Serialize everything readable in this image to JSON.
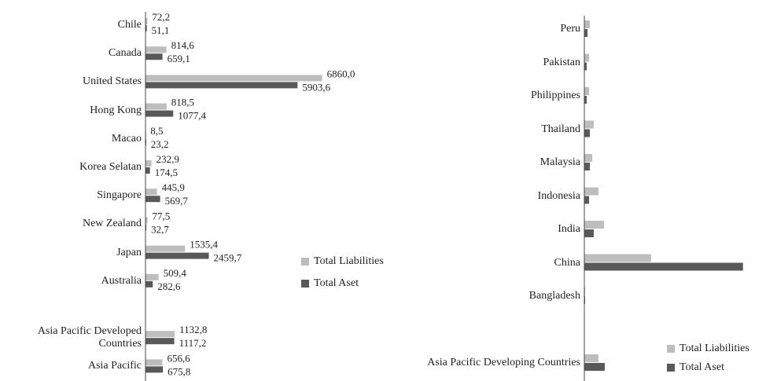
{
  "chart_data": [
    {
      "type": "bar",
      "orientation": "horizontal",
      "legend": "right",
      "categories": [
        "Chile",
        "Canada",
        "United States",
        "Hong Kong",
        "Macao",
        "Korea Selatan",
        "Singapore",
        "New Zealand",
        "Japan",
        "Australia",
        null,
        "Asia Pacific Developed Countries",
        "Asia Pacific"
      ],
      "xlim": [
        0,
        8000
      ],
      "series": [
        {
          "name": "Total Liabilities",
          "color": "#bdbdbd",
          "values": [
            72.2,
            814.6,
            6860.0,
            818.5,
            8.5,
            232.9,
            445.9,
            77.5,
            1535.4,
            509.4,
            null,
            1132.8,
            656.6
          ],
          "value_labels": [
            "72,2",
            "814,6",
            "6860,0",
            "818,5",
            "8,5",
            "232,9",
            "445,9",
            "77,5",
            "1535,4",
            "509,4",
            null,
            "1132,8",
            "656,6"
          ]
        },
        {
          "name": "Total Aset",
          "color": "#595959",
          "values": [
            51.1,
            659.1,
            5903.6,
            1077.4,
            23.2,
            174.5,
            569.7,
            32.7,
            2459.7,
            282.6,
            null,
            1117.2,
            675.8
          ],
          "value_labels": [
            "51,1",
            "659,1",
            "5903,6",
            "1077,4",
            "23,2",
            "174,5",
            "569,7",
            "32,7",
            "2459,7",
            "282,6",
            null,
            "1117,2",
            "675,8"
          ]
        }
      ]
    },
    {
      "type": "bar",
      "orientation": "horizontal",
      "legend": "lower right",
      "categories": [
        "Peru",
        "Pakistan",
        "Philippines",
        "Thailand",
        "Malaysia",
        "Indonesia",
        "India",
        "China",
        "Bangladesh",
        null,
        "Asia Pacific Developing Countries"
      ],
      "xlim": [
        0,
        8000
      ],
      "series": [
        {
          "name": "Total Liabilities",
          "color": "#bdbdbd",
          "values": [
            213,
            183,
            183,
            366,
            305,
            549,
            762,
            2590,
            30,
            null,
            549
          ]
        },
        {
          "name": "Total Aset",
          "color": "#595959",
          "values": [
            122,
            91,
            91,
            213,
            213,
            183,
            366,
            6160,
            30,
            null,
            793
          ]
        }
      ]
    }
  ]
}
